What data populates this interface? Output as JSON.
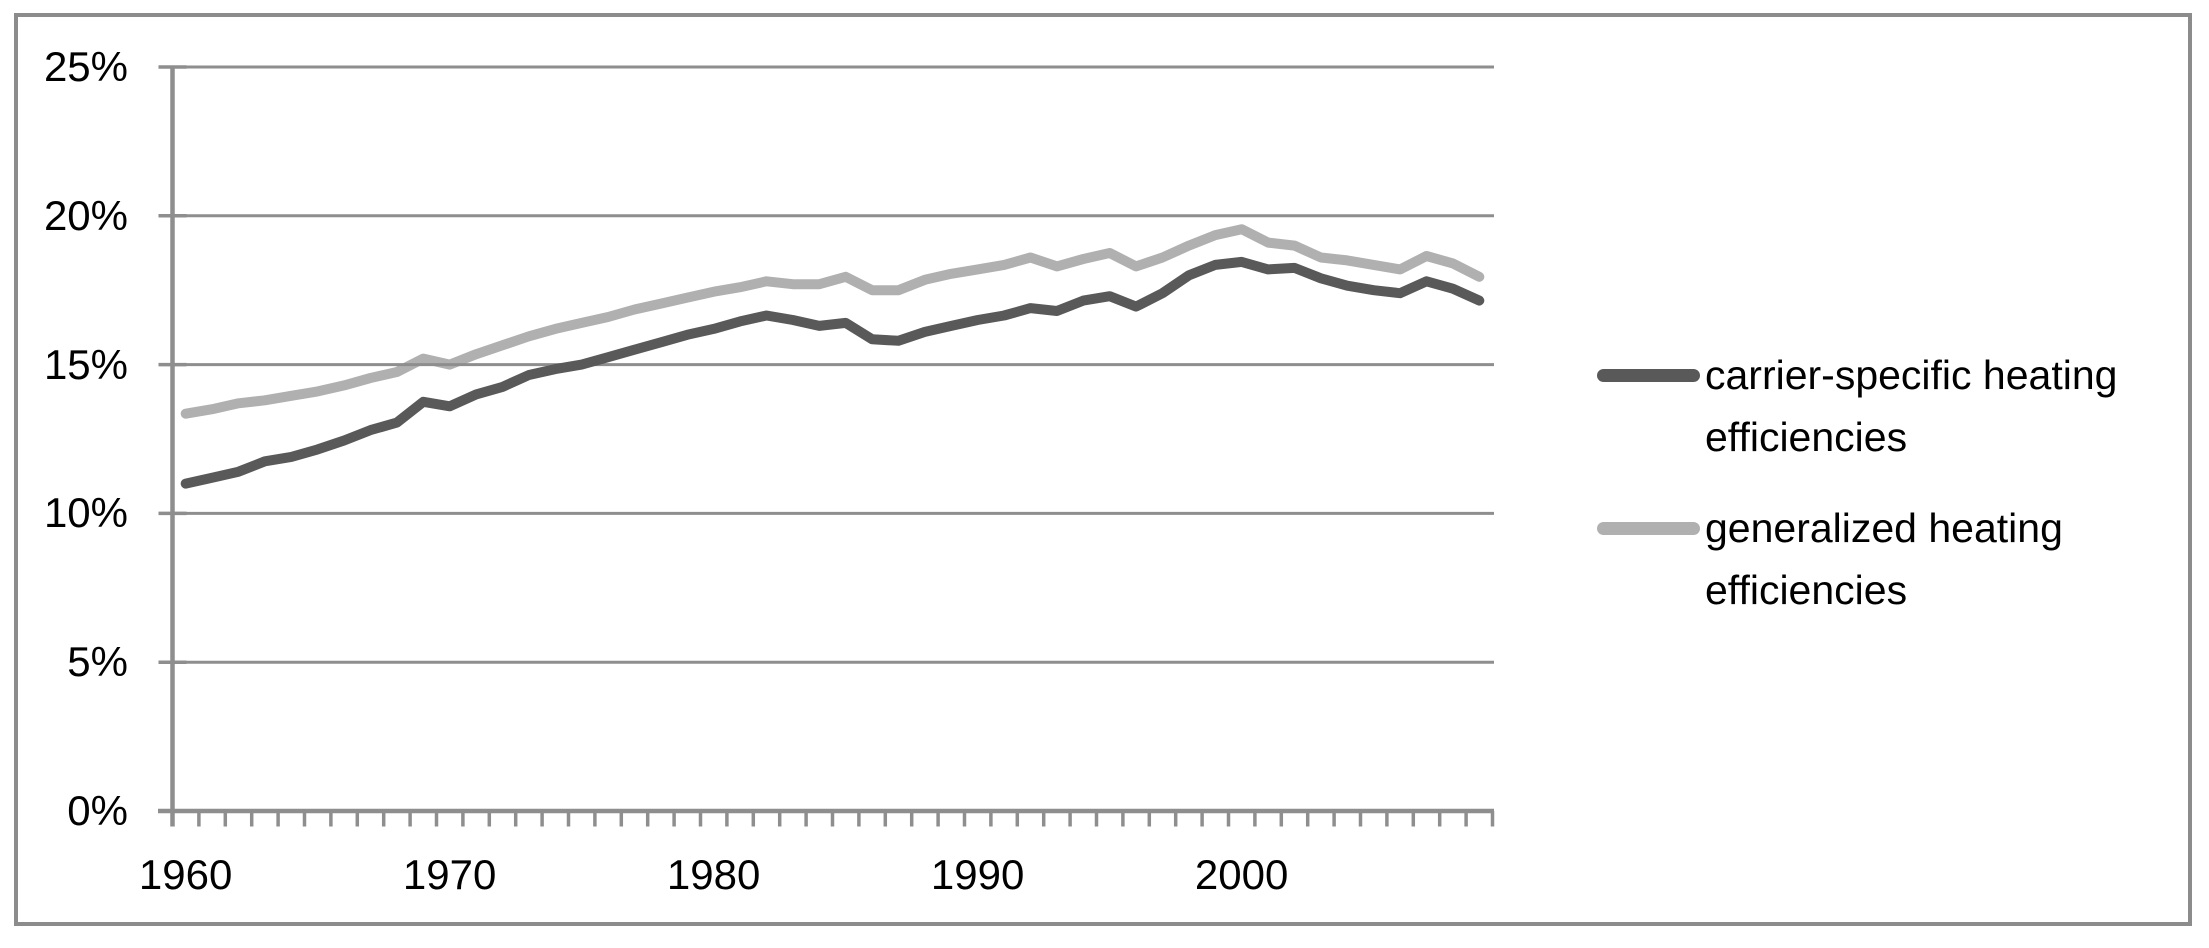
{
  "chart_data": {
    "type": "line",
    "x": [
      1960,
      1961,
      1962,
      1963,
      1964,
      1965,
      1966,
      1967,
      1968,
      1969,
      1970,
      1971,
      1972,
      1973,
      1974,
      1975,
      1976,
      1977,
      1978,
      1979,
      1980,
      1981,
      1982,
      1983,
      1984,
      1985,
      1986,
      1987,
      1988,
      1989,
      1990,
      1991,
      1992,
      1993,
      1994,
      1995,
      1996,
      1997,
      1998,
      1999,
      2000,
      2001,
      2002,
      2003,
      2004,
      2005,
      2006,
      2007,
      2008,
      2009
    ],
    "series": [
      {
        "name": "carrier-specific heating efficiencies",
        "color": "#595959",
        "values": [
          11.0,
          11.2,
          11.4,
          11.75,
          11.9,
          12.15,
          12.45,
          12.8,
          13.05,
          13.75,
          13.6,
          14.0,
          14.25,
          14.65,
          14.85,
          15.0,
          15.25,
          15.5,
          15.75,
          16.0,
          16.2,
          16.45,
          16.65,
          16.5,
          16.3,
          16.4,
          15.85,
          15.8,
          16.1,
          16.3,
          16.5,
          16.65,
          16.9,
          16.8,
          17.15,
          17.3,
          16.95,
          17.4,
          18.0,
          18.35,
          18.45,
          18.2,
          18.25,
          17.9,
          17.65,
          17.5,
          17.4,
          17.8,
          17.55,
          17.15
        ]
      },
      {
        "name": "generalized heating efficiencies",
        "color": "#b0b0b0",
        "values": [
          13.35,
          13.5,
          13.7,
          13.8,
          13.95,
          14.1,
          14.3,
          14.55,
          14.75,
          15.2,
          15.0,
          15.35,
          15.65,
          15.95,
          16.2,
          16.4,
          16.6,
          16.85,
          17.05,
          17.25,
          17.45,
          17.6,
          17.8,
          17.7,
          17.7,
          17.95,
          17.5,
          17.5,
          17.85,
          18.05,
          18.2,
          18.35,
          18.6,
          18.3,
          18.55,
          18.75,
          18.3,
          18.6,
          19.0,
          19.35,
          19.55,
          19.1,
          19.0,
          18.6,
          18.5,
          18.35,
          18.2,
          18.65,
          18.4,
          17.95
        ]
      }
    ],
    "title": "",
    "xlabel": "",
    "ylabel": "",
    "ylim": [
      0,
      25
    ],
    "y_tick_step": 5,
    "y_ticks": [
      "0%",
      "5%",
      "10%",
      "15%",
      "20%",
      "25%"
    ],
    "x_tick_labels": [
      "1960",
      "1970",
      "1980",
      "1990",
      "2000"
    ],
    "x_minor_tick_every_year": true,
    "grid": "horizontal-major",
    "legend_position": "right-center"
  },
  "colors": {
    "axis": "#8e8e8e",
    "grid": "#8e8e8e",
    "border": "#8c8c8c",
    "text": "#000000"
  }
}
